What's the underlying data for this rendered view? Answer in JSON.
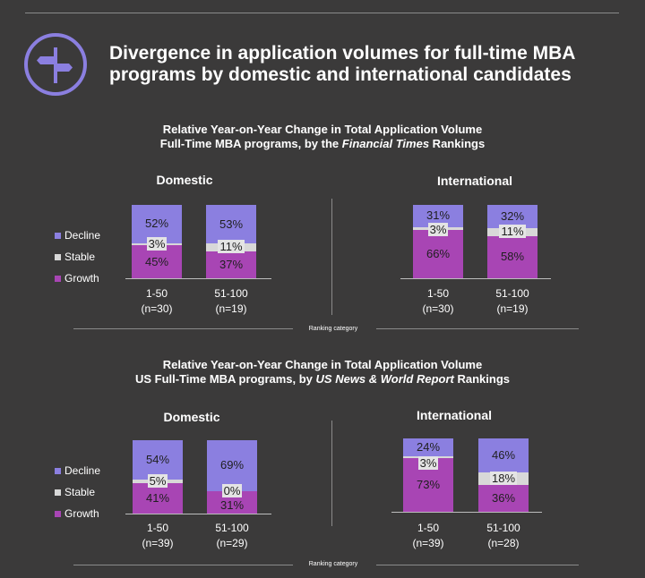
{
  "title": "Divergence in application volumes for full-time MBA programs by domestic and international candidates",
  "colors": {
    "decline": "#8b7fe0",
    "stable": "#d8d8d8",
    "growth": "#a845b4"
  },
  "icon": "signpost-icon",
  "legend": {
    "decline": "Decline",
    "stable": "Stable",
    "growth": "Growth"
  },
  "ranking_axis_label": "Ranking category",
  "sections": [
    {
      "title_line1": "Relative Year-on-Year Change in Total Application Volume",
      "title_line2_pre": "Full-Time MBA programs, by the ",
      "title_line2_em": "Financial Times",
      "title_line2_post": " Rankings"
    },
    {
      "title_line1": "Relative Year-on-Year Change in Total Application Volume",
      "title_line2_pre": "US Full-Time MBA programs, by ",
      "title_line2_em": "US News & World Report",
      "title_line2_post": " Rankings"
    }
  ],
  "chart_data": [
    {
      "type": "bar",
      "stacked": true,
      "percent": true,
      "title": "Domestic",
      "section": "Financial Times",
      "categories": [
        "1-50",
        "51-100"
      ],
      "category_notes": [
        "(n=30)",
        "(n=19)"
      ],
      "series": [
        {
          "name": "Growth",
          "values": [
            45,
            37
          ]
        },
        {
          "name": "Stable",
          "values": [
            3,
            11
          ]
        },
        {
          "name": "Decline",
          "values": [
            52,
            53
          ]
        }
      ]
    },
    {
      "type": "bar",
      "stacked": true,
      "percent": true,
      "title": "International",
      "section": "Financial Times",
      "categories": [
        "1-50",
        "51-100"
      ],
      "category_notes": [
        "(n=30)",
        "(n=19)"
      ],
      "series": [
        {
          "name": "Growth",
          "values": [
            66,
            58
          ]
        },
        {
          "name": "Stable",
          "values": [
            3,
            11
          ]
        },
        {
          "name": "Decline",
          "values": [
            31,
            32
          ]
        }
      ]
    },
    {
      "type": "bar",
      "stacked": true,
      "percent": true,
      "title": "Domestic",
      "section": "US News & World Report",
      "categories": [
        "1-50",
        "51-100"
      ],
      "category_notes": [
        "(n=39)",
        "(n=29)"
      ],
      "series": [
        {
          "name": "Growth",
          "values": [
            41,
            31
          ]
        },
        {
          "name": "Stable",
          "values": [
            5,
            0
          ]
        },
        {
          "name": "Decline",
          "values": [
            54,
            69
          ]
        }
      ]
    },
    {
      "type": "bar",
      "stacked": true,
      "percent": true,
      "title": "International",
      "section": "US News & World Report",
      "categories": [
        "1-50",
        "51-100"
      ],
      "category_notes": [
        "(n=39)",
        "(n=28)"
      ],
      "series": [
        {
          "name": "Growth",
          "values": [
            73,
            36
          ]
        },
        {
          "name": "Stable",
          "values": [
            3,
            18
          ]
        },
        {
          "name": "Decline",
          "values": [
            24,
            46
          ]
        }
      ]
    }
  ]
}
